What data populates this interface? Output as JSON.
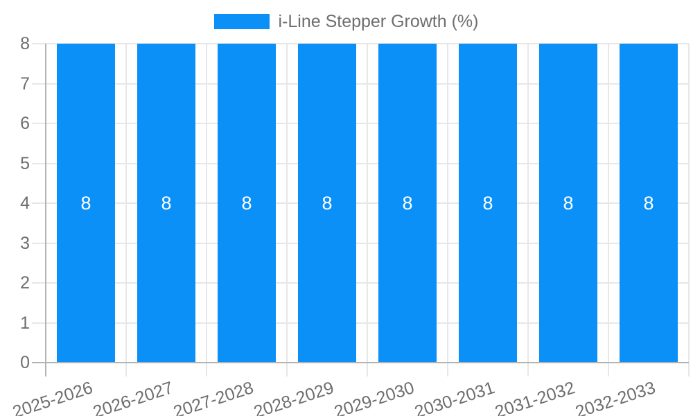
{
  "chart_data": {
    "type": "bar",
    "title": "",
    "categories": [
      "2025-2026",
      "2026-2027",
      "2027-2028",
      "2028-2029",
      "2029-2030",
      "2030-2031",
      "2031-2032",
      "2032-2033"
    ],
    "series": [
      {
        "name": "i-Line Stepper Growth (%)",
        "color": "#0a90f7",
        "values": [
          8,
          8,
          8,
          8,
          8,
          8,
          8,
          8
        ]
      }
    ],
    "value_labels": [
      8,
      8,
      8,
      8,
      8,
      8,
      8,
      8
    ],
    "xlabel": "",
    "ylabel": "",
    "ylim": [
      0,
      8
    ],
    "yticks": [
      0,
      1,
      2,
      3,
      4,
      5,
      6,
      7,
      8
    ],
    "grid": true,
    "legend_position": "top-center"
  },
  "colors": {
    "bar": "#0a90f7",
    "grid_light": "#e7e7e7",
    "grid_zero": "#b3b3b3",
    "tick_text": "#6e6e6e",
    "value_label_text": "#ffffff",
    "background": "#ffffff"
  }
}
